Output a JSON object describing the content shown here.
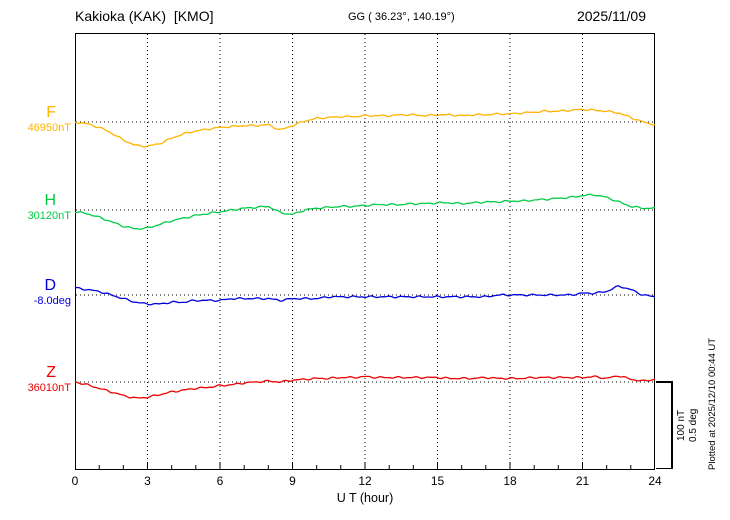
{
  "header": {
    "station": "Kakioka (KAK)  [KMO]",
    "gg": "GG ( 36.23°, 140.19°)",
    "date": "2025/11/09"
  },
  "xaxis": {
    "label": "U T (hour)"
  },
  "scale_bar": {
    "labels": [
      "100 nT",
      "0.5 deg"
    ]
  },
  "plotted_at": "Plotted at 2025/12/10 00:44 UT",
  "chart_data": {
    "type": "line",
    "title": "Kakioka (KAK) [KMO] magnetogram 2025/11/09",
    "xlabel": "U T (hour)",
    "x_unit": "hour",
    "x_range": [
      0,
      24
    ],
    "x_ticks": [
      0,
      3,
      6,
      9,
      12,
      15,
      18,
      21,
      24
    ],
    "sample_step_hours": 0.5,
    "grid": "dotted vertical lines at 3h marks, dotted horizontal baselines",
    "scale": {
      "nT_per_division": 100,
      "deg_per_division": 0.5
    },
    "series": [
      {
        "name": "F",
        "unit": "nT",
        "color": "#FFB300",
        "baseline_value": 46950,
        "baseline_label": "46950nT",
        "offsets_from_baseline": [
          0,
          -2,
          -6,
          -12,
          -20,
          -26,
          -27,
          -24,
          -18,
          -13,
          -10,
          -8,
          -6,
          -5,
          -4,
          -4,
          -3,
          -9,
          -4,
          1,
          4,
          5,
          6,
          6,
          7,
          7,
          7,
          8,
          8,
          7,
          8,
          8,
          7,
          8,
          8,
          9,
          9,
          10,
          11,
          12,
          12,
          13,
          14,
          13,
          12,
          10,
          5,
          0,
          -3
        ]
      },
      {
        "name": "H",
        "unit": "nT",
        "color": "#00CC44",
        "baseline_value": 30120,
        "baseline_label": "30120nT",
        "offsets_from_baseline": [
          -2,
          -4,
          -8,
          -13,
          -18,
          -21,
          -20,
          -16,
          -12,
          -9,
          -6,
          -4,
          -2,
          0,
          2,
          3,
          4,
          -3,
          -5,
          0,
          2,
          3,
          4,
          4,
          5,
          6,
          6,
          6,
          7,
          7,
          8,
          8,
          7,
          8,
          9,
          9,
          10,
          10,
          11,
          12,
          13,
          14,
          16,
          17,
          14,
          9,
          4,
          2,
          2
        ]
      },
      {
        "name": "D",
        "unit": "deg",
        "color": "#0000DD",
        "baseline_value": -8.0,
        "baseline_label": "-8.0deg",
        "offsets_from_baseline": [
          0.04,
          0.03,
          0.02,
          0.0,
          -0.02,
          -0.04,
          -0.05,
          -0.05,
          -0.04,
          -0.04,
          -0.03,
          -0.03,
          -0.03,
          -0.02,
          -0.02,
          -0.02,
          -0.02,
          -0.03,
          -0.02,
          -0.02,
          -0.02,
          -0.01,
          -0.01,
          -0.01,
          -0.01,
          -0.01,
          -0.01,
          -0.01,
          -0.01,
          -0.01,
          -0.01,
          -0.01,
          -0.01,
          -0.01,
          -0.01,
          0,
          0,
          0,
          0,
          0,
          0,
          0,
          0.01,
          0.01,
          0.02,
          0.05,
          0.03,
          0,
          -0.01
        ]
      },
      {
        "name": "Z",
        "unit": "nT",
        "color": "#EE0000",
        "baseline_value": 36010,
        "baseline_label": "36010nT",
        "offsets_from_baseline": [
          0,
          -3,
          -7,
          -11,
          -15,
          -18,
          -17,
          -14,
          -11,
          -9,
          -7,
          -6,
          -4,
          -3,
          -1,
          0,
          1,
          0,
          2,
          3,
          4,
          4,
          5,
          5,
          6,
          5,
          5,
          5,
          5,
          5,
          5,
          4,
          4,
          4,
          5,
          4,
          4,
          4,
          5,
          5,
          5,
          5,
          5,
          6,
          4,
          7,
          3,
          1,
          3
        ]
      }
    ]
  }
}
